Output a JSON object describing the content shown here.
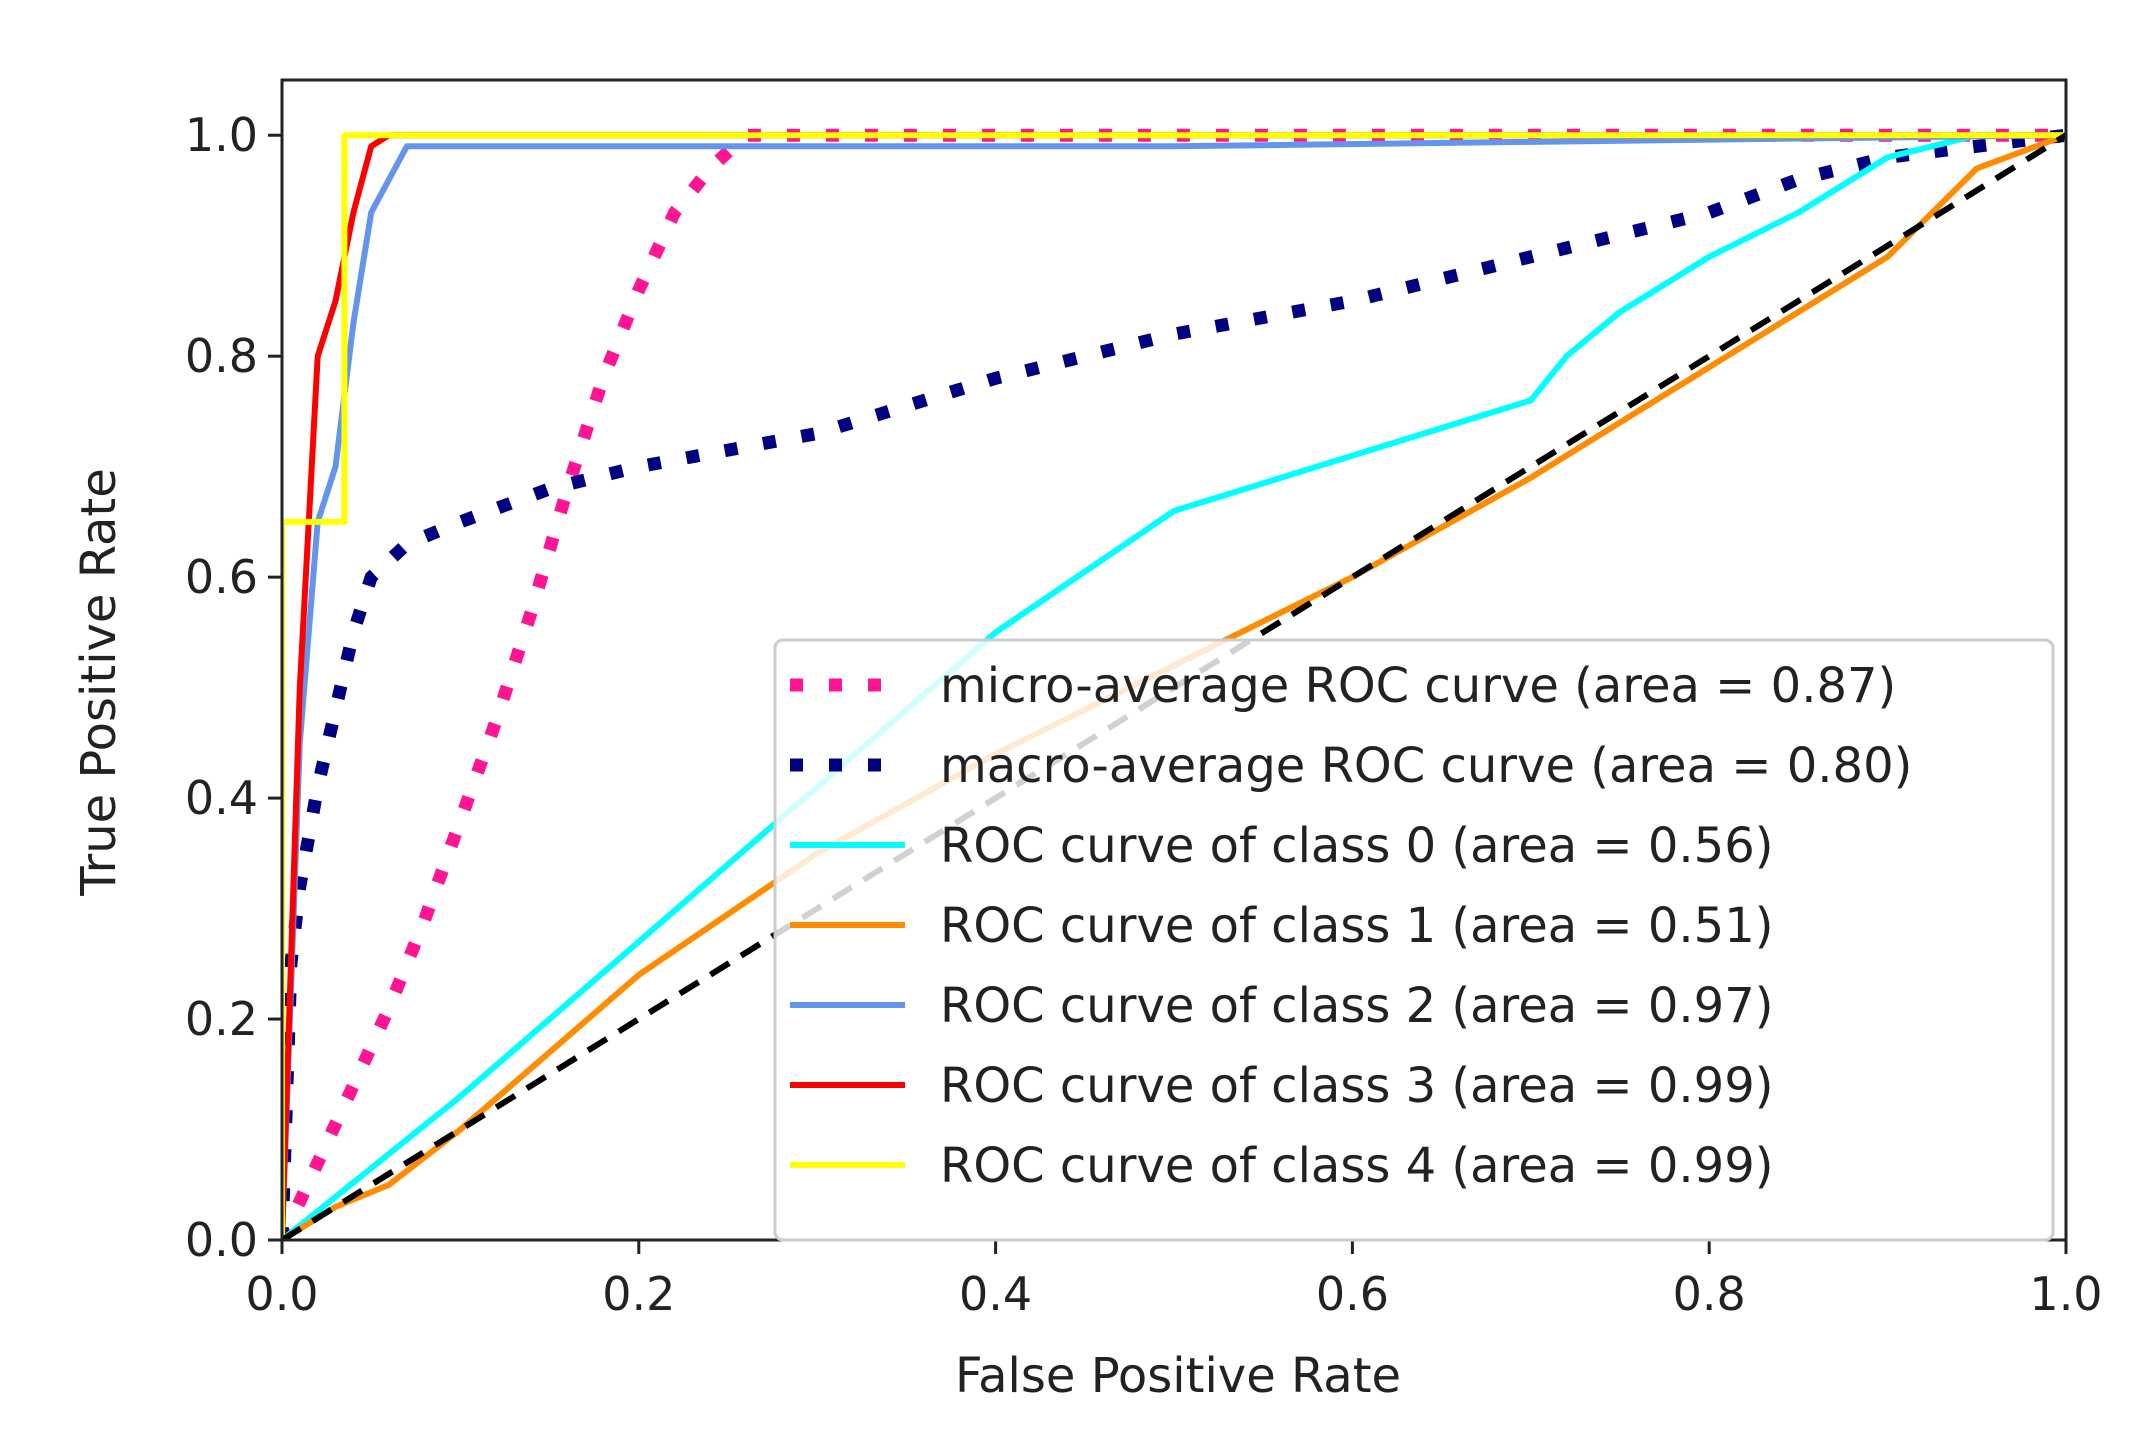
{
  "chart_data": {
    "type": "line",
    "title": "",
    "xlabel": "False Positive Rate",
    "ylabel": "True Positive Rate",
    "xlim": [
      0.0,
      1.0
    ],
    "ylim": [
      0.0,
      1.05
    ],
    "xticks": [
      "0.0",
      "0.2",
      "0.4",
      "0.6",
      "0.8",
      "1.0"
    ],
    "yticks": [
      "0.0",
      "0.2",
      "0.4",
      "0.6",
      "0.8",
      "1.0"
    ],
    "grid": false,
    "legend_position": "lower-right",
    "series": [
      {
        "name": "micro-average ROC curve (area = 0.87)",
        "color": "#ff1493",
        "style": "dotted",
        "x": [
          0.0,
          0.02,
          0.04,
          0.06,
          0.08,
          0.1,
          0.12,
          0.14,
          0.16,
          0.18,
          0.2,
          0.22,
          0.24,
          0.26,
          0.3,
          0.5,
          1.0
        ],
        "y": [
          0.0,
          0.07,
          0.14,
          0.21,
          0.29,
          0.38,
          0.47,
          0.57,
          0.68,
          0.78,
          0.86,
          0.93,
          0.97,
          1.0,
          1.0,
          1.0,
          1.0
        ]
      },
      {
        "name": "macro-average ROC curve (area = 0.80)",
        "color": "#000080",
        "style": "dotted",
        "x": [
          0.0,
          0.005,
          0.01,
          0.02,
          0.03,
          0.04,
          0.05,
          0.07,
          0.1,
          0.15,
          0.2,
          0.3,
          0.4,
          0.5,
          0.6,
          0.7,
          0.8,
          0.85,
          0.9,
          0.95,
          1.0
        ],
        "y": [
          0.0,
          0.25,
          0.32,
          0.41,
          0.48,
          0.55,
          0.6,
          0.63,
          0.65,
          0.68,
          0.7,
          0.73,
          0.78,
          0.82,
          0.85,
          0.89,
          0.93,
          0.96,
          0.98,
          0.99,
          1.0
        ]
      },
      {
        "name": "ROC curve of class 0 (area = 0.56)",
        "color": "#00ffff",
        "style": "solid",
        "x": [
          0.0,
          0.1,
          0.2,
          0.3,
          0.4,
          0.5,
          0.6,
          0.7,
          0.72,
          0.75,
          0.8,
          0.85,
          0.9,
          0.95,
          1.0
        ],
        "y": [
          0.0,
          0.13,
          0.27,
          0.41,
          0.55,
          0.66,
          0.71,
          0.76,
          0.8,
          0.84,
          0.89,
          0.93,
          0.98,
          1.0,
          1.0
        ]
      },
      {
        "name": "ROC curve of class 1 (area = 0.51)",
        "color": "#ff8c00",
        "style": "solid",
        "x": [
          0.0,
          0.03,
          0.06,
          0.1,
          0.2,
          0.3,
          0.4,
          0.5,
          0.6,
          0.7,
          0.8,
          0.9,
          0.95,
          1.0
        ],
        "y": [
          0.0,
          0.03,
          0.05,
          0.1,
          0.24,
          0.35,
          0.44,
          0.52,
          0.6,
          0.69,
          0.79,
          0.89,
          0.97,
          1.0
        ]
      },
      {
        "name": "ROC curve of class 2 (area = 0.97)",
        "color": "#6495ed",
        "style": "solid",
        "x": [
          0.0,
          0.01,
          0.02,
          0.03,
          0.04,
          0.05,
          0.06,
          0.07,
          0.5,
          1.0
        ],
        "y": [
          0.0,
          0.45,
          0.65,
          0.7,
          0.83,
          0.93,
          0.96,
          0.99,
          0.99,
          1.0
        ]
      },
      {
        "name": "ROC curve of class 3 (area = 0.99)",
        "color": "#ff0000",
        "style": "solid",
        "x": [
          0.0,
          0.01,
          0.02,
          0.03,
          0.04,
          0.05,
          0.06,
          0.07,
          1.0
        ],
        "y": [
          0.0,
          0.5,
          0.8,
          0.85,
          0.93,
          0.99,
          1.0,
          1.0,
          1.0
        ]
      },
      {
        "name": "ROC curve of class 4 (area = 0.99)",
        "color": "#ffff00",
        "style": "solid",
        "x": [
          0.0,
          0.0,
          0.03,
          0.035,
          0.035,
          1.0
        ],
        "y": [
          0.0,
          0.65,
          0.65,
          0.65,
          1.0,
          1.0
        ]
      }
    ],
    "reference_line": {
      "color": "#000000",
      "style": "dashed",
      "x": [
        0.0,
        1.0
      ],
      "y": [
        0.0,
        1.0
      ]
    }
  }
}
